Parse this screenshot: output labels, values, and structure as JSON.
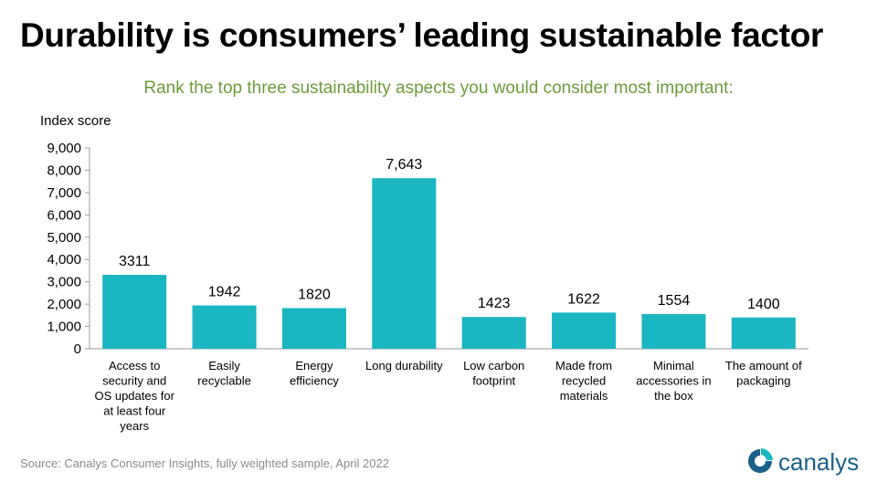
{
  "title": "Durability is consumers’ leading sustainable factor",
  "subtitle": "Rank the top three sustainability aspects you would consider most important:",
  "source": "Source:  Canalys Consumer Insights, fully weighted sample, April 2022",
  "logo_text": "canalys",
  "colors": {
    "bar": "#1ab6c2",
    "subtitle": "#6e9b3c",
    "logo": "#1a5f8a"
  },
  "chart_data": {
    "type": "bar",
    "ylabel": "Index score",
    "ylim": [
      0,
      9000
    ],
    "yticks": [
      "0",
      "1,000",
      "2,000",
      "3,000",
      "4,000",
      "5,000",
      "6,000",
      "7,000",
      "8,000",
      "9,000"
    ],
    "grid": false,
    "categories": [
      [
        "Access to",
        "security and",
        "OS updates for",
        "at least four",
        "years"
      ],
      [
        "Easily",
        "recyclable"
      ],
      [
        "Energy",
        "efficiency"
      ],
      [
        "Long durability"
      ],
      [
        "Low carbon",
        "footprint"
      ],
      [
        "Made from",
        "recycled",
        "materials"
      ],
      [
        "Minimal",
        "accessories in",
        "the box"
      ],
      [
        "The amount of",
        "packaging"
      ]
    ],
    "values": [
      3311,
      1942,
      1820,
      7643,
      1423,
      1622,
      1554,
      1400
    ],
    "data_labels": [
      "3311",
      "1942",
      "1820",
      "7,643",
      "1423",
      "1622",
      "1554",
      "1400"
    ]
  }
}
